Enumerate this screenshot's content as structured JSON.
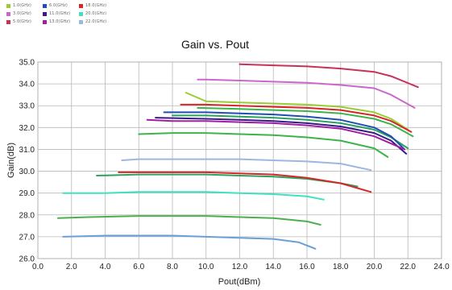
{
  "chart_data": {
    "type": "line",
    "title": "Gain vs. Pout",
    "xlabel": "Pout(dBm)",
    "ylabel": "Gain(dB)",
    "xlim": [
      0,
      24
    ],
    "ylim": [
      26,
      35
    ],
    "x_ticks": [
      "0.0",
      "2.0",
      "4.0",
      "6.0",
      "8.0",
      "10.0",
      "12.0",
      "14.0",
      "16.0",
      "18.0",
      "20.0",
      "22.0",
      "24.0"
    ],
    "y_ticks": [
      "26.0",
      "27.0",
      "28.0",
      "29.0",
      "30.0",
      "31.0",
      "32.0",
      "33.0",
      "34.0",
      "35.0"
    ],
    "grid": true,
    "legend_position": "top-left",
    "series": [
      {
        "name": "1.0(GHz)",
        "color": "#9acd32",
        "x": [
          8.8,
          10,
          12,
          14,
          16,
          18,
          20,
          21,
          22
        ],
        "y": [
          33.6,
          33.2,
          33.15,
          33.1,
          33.05,
          32.95,
          32.7,
          32.4,
          31.9
        ]
      },
      {
        "name": "6.0(GHz)",
        "color": "#1f4fb4",
        "x": [
          7.5,
          10,
          12,
          14,
          16,
          18,
          20,
          21,
          21.8
        ],
        "y": [
          32.7,
          32.7,
          32.65,
          32.6,
          32.5,
          32.35,
          32.0,
          31.6,
          31.0
        ]
      },
      {
        "name": "18.0(GHz)",
        "color": "#d62728",
        "x": [
          8.5,
          10,
          12,
          14,
          16,
          18,
          20,
          21,
          22.2
        ],
        "y": [
          33.05,
          33.05,
          33.0,
          32.95,
          32.9,
          32.8,
          32.55,
          32.3,
          31.8
        ]
      },
      {
        "name": "3.0(GHz)",
        "color": "#cc66cc",
        "x": [
          9.5,
          10,
          12,
          14,
          16,
          18,
          20,
          21,
          22.4
        ],
        "y": [
          34.2,
          34.2,
          34.15,
          34.1,
          34.05,
          33.95,
          33.8,
          33.5,
          32.9
        ]
      },
      {
        "name": "11.0(GHz)",
        "color": "#3a1a8a",
        "x": [
          7,
          10,
          12,
          14,
          16,
          18,
          20,
          21,
          21.9
        ],
        "y": [
          32.45,
          32.4,
          32.35,
          32.3,
          32.2,
          32.05,
          31.75,
          31.4,
          30.8
        ]
      },
      {
        "name": "20.0(GHz)",
        "color": "#40e0c0",
        "x": [
          1.5,
          4,
          6,
          8,
          10,
          12,
          14,
          16,
          17
        ],
        "y": [
          29.0,
          29.0,
          29.05,
          29.05,
          29.05,
          29.0,
          28.95,
          28.85,
          28.7
        ]
      },
      {
        "name": "5.0(GHz)",
        "color": "#c8325a",
        "x": [
          12,
          14,
          16,
          18,
          20,
          21,
          22.6
        ],
        "y": [
          34.9,
          34.85,
          34.8,
          34.7,
          34.55,
          34.35,
          33.85
        ]
      },
      {
        "name": "13.0(GHz)",
        "color": "#a020a0",
        "x": [
          6.5,
          8,
          10,
          12,
          14,
          16,
          18,
          20,
          21.8
        ],
        "y": [
          32.35,
          32.3,
          32.3,
          32.25,
          32.2,
          32.1,
          31.95,
          31.6,
          31.0
        ]
      },
      {
        "name": "22.0(GHz)",
        "color": "#9ab8e0",
        "x": [
          5,
          6,
          8,
          10,
          12,
          14,
          16,
          18,
          19.8
        ],
        "y": [
          30.5,
          30.55,
          30.55,
          30.55,
          30.55,
          30.5,
          30.45,
          30.35,
          30.05
        ]
      }
    ],
    "other_series": [
      {
        "color": "#3cb44b",
        "x": [
          9.5,
          12,
          14,
          16,
          18,
          20,
          21,
          22.3
        ],
        "y": [
          32.9,
          32.85,
          32.8,
          32.75,
          32.65,
          32.4,
          32.15,
          31.6
        ]
      },
      {
        "color": "#2ca25f",
        "x": [
          8,
          10,
          12,
          14,
          16,
          18,
          20,
          21,
          22
        ],
        "y": [
          32.55,
          32.55,
          32.5,
          32.45,
          32.35,
          32.2,
          31.9,
          31.55,
          31.05
        ]
      },
      {
        "color": "#3cb44b",
        "x": [
          6,
          8,
          10,
          12,
          14,
          16,
          18,
          20,
          20.8
        ],
        "y": [
          31.7,
          31.75,
          31.75,
          31.7,
          31.65,
          31.55,
          31.4,
          31.05,
          30.65
        ]
      },
      {
        "color": "#2ca25f",
        "x": [
          3.5,
          6,
          8,
          10,
          12,
          14,
          16,
          18,
          19
        ],
        "y": [
          29.8,
          29.85,
          29.85,
          29.85,
          29.8,
          29.75,
          29.65,
          29.45,
          29.3
        ]
      },
      {
        "color": "#d62728",
        "x": [
          4.8,
          6,
          8,
          10,
          12,
          14,
          16,
          18,
          19.8
        ],
        "y": [
          29.95,
          29.95,
          29.95,
          29.95,
          29.9,
          29.85,
          29.7,
          29.45,
          29.05
        ]
      },
      {
        "color": "#4caf50",
        "x": [
          1.2,
          3,
          6,
          8,
          10,
          12,
          14,
          16,
          16.8
        ],
        "y": [
          27.85,
          27.9,
          27.95,
          27.95,
          27.95,
          27.9,
          27.85,
          27.7,
          27.55
        ]
      },
      {
        "color": "#6a9fd8",
        "x": [
          1.5,
          4,
          6,
          8,
          10,
          12,
          14,
          15.5,
          16.5
        ],
        "y": [
          27.0,
          27.05,
          27.05,
          27.05,
          27.0,
          26.95,
          26.9,
          26.75,
          26.45
        ]
      }
    ]
  }
}
